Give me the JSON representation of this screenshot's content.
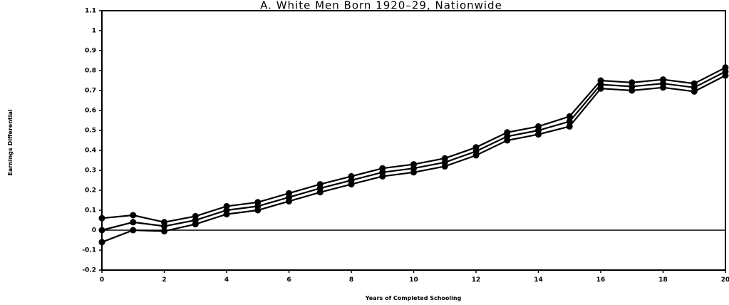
{
  "chart_data": {
    "type": "line",
    "title": "A. White Men Born 1920–29, Nationwide",
    "xlabel": "Years of Completed Schooling",
    "ylabel": "Earnings Differential",
    "xlim": [
      0,
      20
    ],
    "ylim": [
      -0.2,
      1.1
    ],
    "x_ticks": [
      "0",
      "2",
      "4",
      "6",
      "8",
      "10",
      "12",
      "14",
      "16",
      "18",
      "20"
    ],
    "y_ticks": [
      "-0.2",
      "-0.1",
      "0",
      "0.1",
      "0.2",
      "0.3",
      "0.4",
      "0.5",
      "0.6",
      "0.7",
      "0.8",
      "0.9",
      "1",
      "1.1"
    ],
    "grid": false,
    "zero_line": true,
    "x": [
      0,
      1,
      2,
      3,
      4,
      5,
      6,
      7,
      8,
      9,
      10,
      11,
      12,
      13,
      14,
      15,
      16,
      17,
      18,
      19,
      20
    ],
    "series": [
      {
        "values": [
          0.06,
          0.075,
          0.04,
          0.07,
          0.12,
          0.14,
          0.185,
          0.23,
          0.27,
          0.31,
          0.33,
          0.36,
          0.415,
          0.49,
          0.52,
          0.57,
          0.75,
          0.74,
          0.755,
          0.735,
          0.815
        ]
      },
      {
        "values": [
          0.0,
          0.04,
          0.02,
          0.05,
          0.1,
          0.12,
          0.165,
          0.21,
          0.25,
          0.29,
          0.31,
          0.34,
          0.395,
          0.47,
          0.5,
          0.545,
          0.73,
          0.72,
          0.735,
          0.715,
          0.795
        ]
      },
      {
        "values": [
          -0.06,
          0.0,
          -0.005,
          0.03,
          0.08,
          0.1,
          0.145,
          0.19,
          0.23,
          0.27,
          0.29,
          0.32,
          0.375,
          0.45,
          0.48,
          0.52,
          0.71,
          0.7,
          0.715,
          0.695,
          0.775
        ]
      }
    ]
  }
}
